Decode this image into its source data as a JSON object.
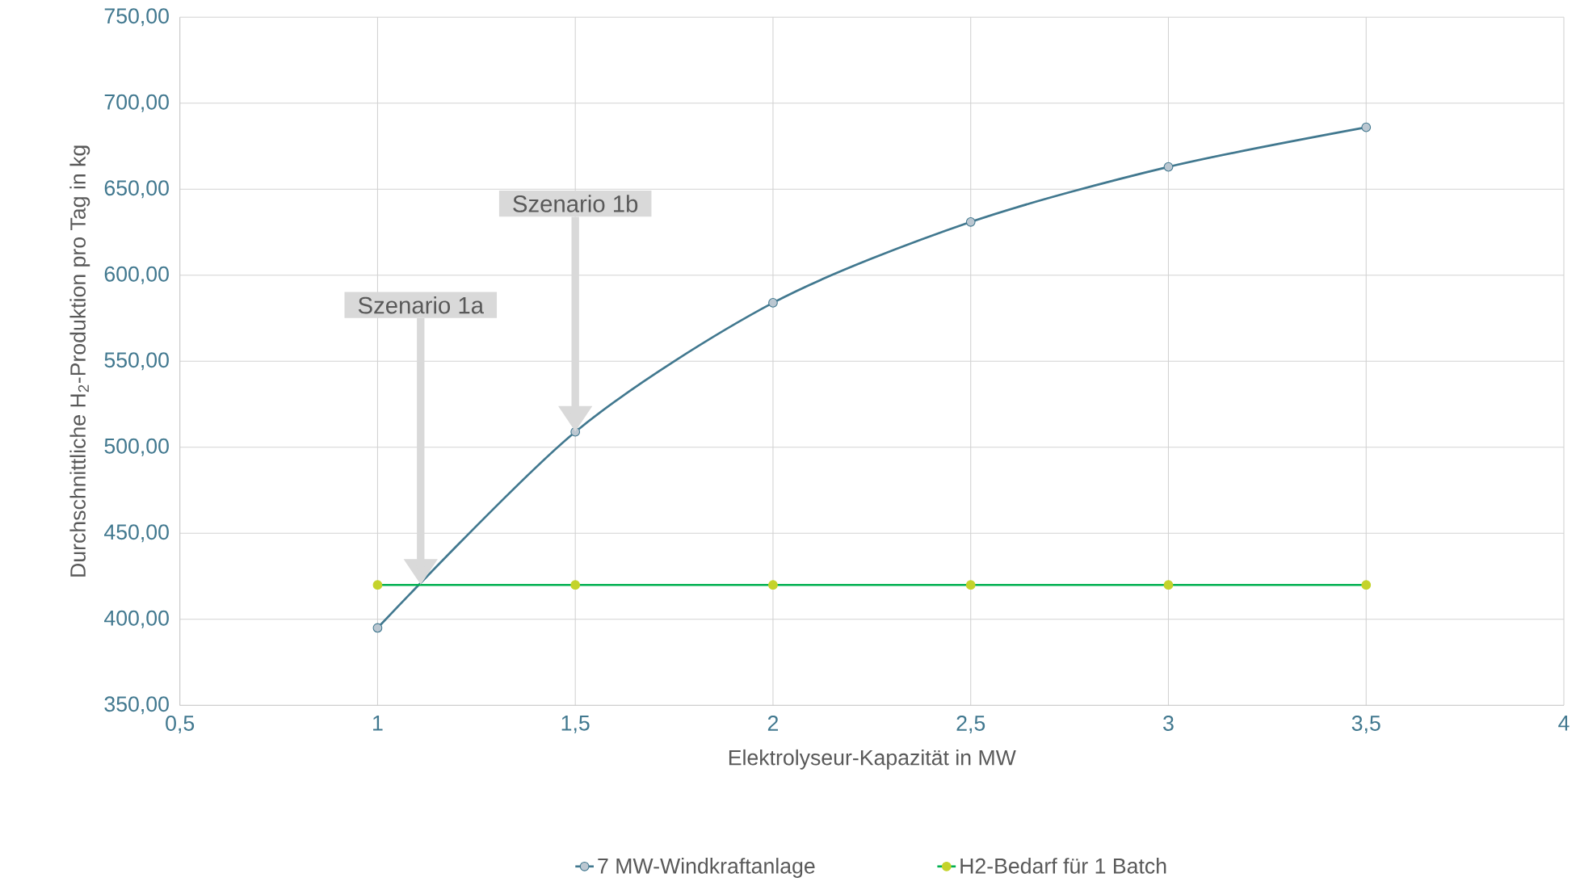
{
  "chart_data": {
    "type": "line",
    "xlabel": "Elektrolyseur-Kapazität in MW",
    "ylabel": "Durchschnittliche H$_{2}$-Produktion pro Tag in kg",
    "x": [
      1,
      1.5,
      2,
      2.5,
      3,
      3.5
    ],
    "series": [
      {
        "name": "7 MW-Windkraftanlage",
        "color": "#41788f",
        "values": [
          395,
          509,
          584,
          631,
          663,
          686
        ]
      },
      {
        "name": "H2-Bedarf für 1 Batch",
        "color": "#00b050",
        "values": [
          420,
          420,
          420,
          420,
          420,
          420
        ]
      }
    ],
    "xlim": [
      0.5,
      4
    ],
    "xticks": [
      {
        "value": 0.5,
        "label": "0,5"
      },
      1,
      {
        "value": 1.5,
        "label": "1,5"
      },
      2,
      {
        "value": 2.5,
        "label": "2,5"
      },
      3,
      {
        "value": 3.5,
        "label": "3,5"
      },
      4
    ],
    "ylim": [
      350,
      750
    ],
    "yticks": [
      {
        "value": 350,
        "label": "350,00"
      },
      {
        "value": 400,
        "label": "400,00"
      },
      {
        "value": 450,
        "label": "450,00"
      },
      {
        "value": 500,
        "label": "500,00"
      },
      {
        "value": 550,
        "label": "550,00"
      },
      {
        "value": 600,
        "label": "600,00"
      },
      {
        "value": 650,
        "label": "650,00"
      },
      {
        "value": 700,
        "label": "700,00"
      },
      {
        "value": 750,
        "label": "750,00"
      }
    ],
    "annotations": [
      "Szenario 1a",
      "Szenario 1b"
    ],
    "grid": true,
    "legend": "bottom",
    "marker": "circle",
    "line_style": "solid"
  }
}
